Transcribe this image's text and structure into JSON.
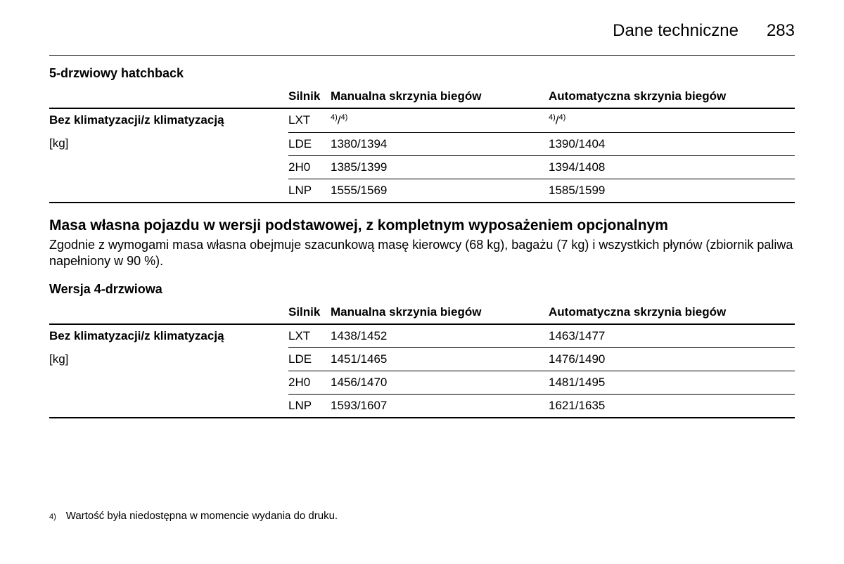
{
  "header": {
    "section_title": "Dane techniczne",
    "page_number": "283"
  },
  "table1": {
    "caption": "5-drzwiowy hatchback",
    "columns": {
      "label": "",
      "engine": "Silnik",
      "manual": "Manualna skrzynia biegów",
      "auto": "Automatyczna skrzynia biegów"
    },
    "row_label_bold": "Bez klimatyzacji/z klimatyzacją",
    "row_label_unit": "[kg]",
    "rows": [
      {
        "engine": "LXT",
        "manual_footnote": true,
        "auto_footnote": true
      },
      {
        "engine": "LDE",
        "manual": "1380/1394",
        "auto": "1390/1404"
      },
      {
        "engine": "2H0",
        "manual": "1385/1399",
        "auto": "1394/1408"
      },
      {
        "engine": "LNP",
        "manual": "1555/1569",
        "auto": "1585/1599"
      }
    ]
  },
  "section2": {
    "heading": "Masa własna pojazdu w wersji podstawowej, z kompletnym wyposażeniem opcjonalnym",
    "body": "Zgodnie z wymogami masa własna obejmuje szacunkową masę kierowcy (68 kg), bagażu (7 kg) i wszystkich płynów (zbiornik paliwa napełniony w 90 %)."
  },
  "table2": {
    "caption": "Wersja 4-drzwiowa",
    "columns": {
      "label": "",
      "engine": "Silnik",
      "manual": "Manualna skrzynia biegów",
      "auto": "Automatyczna skrzynia biegów"
    },
    "row_label_bold": "Bez klimatyzacji/z klimatyzacją",
    "row_label_unit": "[kg]",
    "rows": [
      {
        "engine": "LXT",
        "manual": "1438/1452",
        "auto": "1463/1477"
      },
      {
        "engine": "LDE",
        "manual": "1451/1465",
        "auto": "1476/1490"
      },
      {
        "engine": "2H0",
        "manual": "1456/1470",
        "auto": "1481/1495"
      },
      {
        "engine": "LNP",
        "manual": "1593/1607",
        "auto": "1621/1635"
      }
    ]
  },
  "footnote": {
    "marker": "4)",
    "text": "Wartość była niedostępna w momencie wydania do druku.",
    "ref": "4)"
  },
  "style": {
    "background": "#ffffff",
    "text": "#000000",
    "border": "#000000"
  }
}
